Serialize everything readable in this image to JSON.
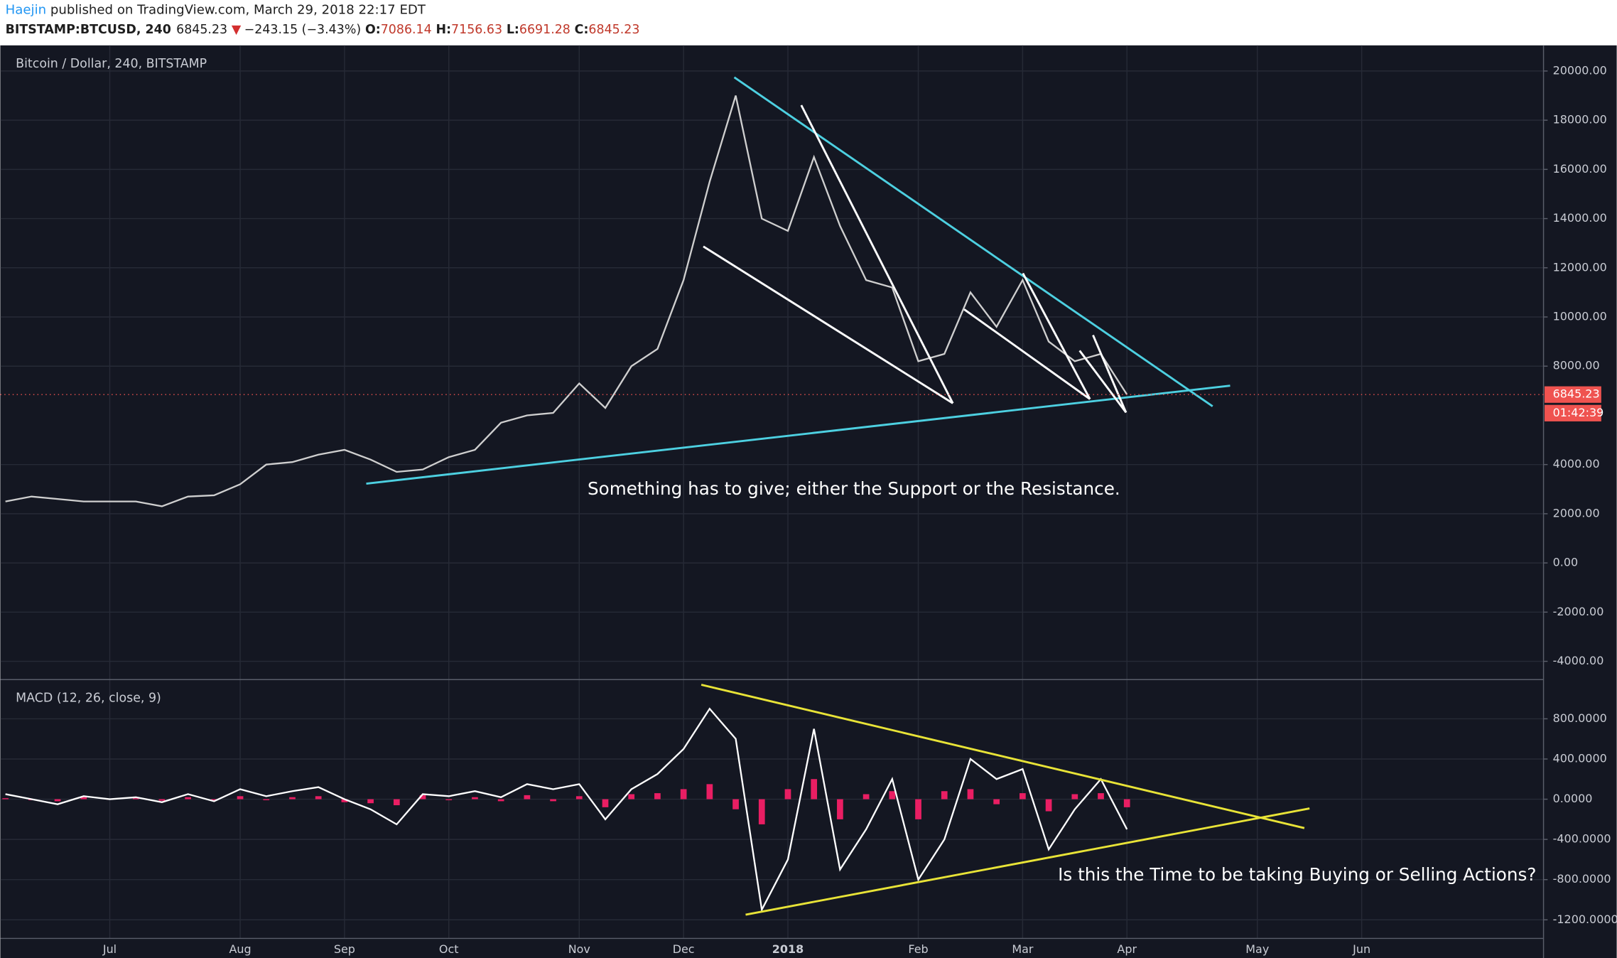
{
  "header": {
    "author": "Haejin",
    "published": "published on TradingView.com, March 29, 2018 22:17 EDT",
    "symbol": "BITSTAMP:BTCUSD, 240",
    "price": "6845.23",
    "arrow": "▼",
    "change": "−243.15 (−3.43%)",
    "open_label": "O:",
    "open": "7086.14",
    "high_label": "H:",
    "high": "7156.63",
    "low_label": "L:",
    "low": "6691.28",
    "close_label": "C:",
    "close": "6845.23"
  },
  "chart_data": [
    {
      "type": "line",
      "title": "Bitcoin / Dollar, 240, BITSTAMP",
      "color": "#cfcfcf",
      "annotation": "Something has to give; either the Support or the Resistance.",
      "values": [
        2500,
        2700,
        2600,
        2500,
        2500,
        2500,
        2300,
        2700,
        2750,
        3200,
        4000,
        4100,
        4400,
        4600,
        4200,
        3700,
        3800,
        4300,
        4600,
        5700,
        6000,
        6100,
        7300,
        6300,
        8000,
        8700,
        11500,
        15500,
        19000,
        14000,
        13500,
        16500,
        13700,
        11500,
        11200,
        8200,
        8500,
        11000,
        9600,
        11500,
        9000,
        8200,
        8500,
        6845.23,
        null,
        null,
        null,
        null,
        null,
        null,
        null,
        null,
        null,
        null,
        null,
        null,
        null,
        null,
        null
      ],
      "ylim": [
        -4700,
        21000
      ],
      "yticks": [
        {
          "value": 20000,
          "label": "20000.00"
        },
        {
          "value": 18000,
          "label": "18000.00"
        },
        {
          "value": 16000,
          "label": "16000.00"
        },
        {
          "value": 14000,
          "label": "14000.00"
        },
        {
          "value": 12000,
          "label": "12000.00"
        },
        {
          "value": 10000,
          "label": "10000.00"
        },
        {
          "value": 8000,
          "label": "8000.00"
        },
        {
          "value": 4000,
          "label": "4000.00"
        },
        {
          "value": 2000,
          "label": "2000.00"
        },
        {
          "value": 0,
          "label": "0.00"
        },
        {
          "value": -2000,
          "label": "-2000.00"
        },
        {
          "value": -4000,
          "label": "-4000.00"
        }
      ],
      "last_price": {
        "value": 6845.23,
        "label": "6845.23"
      },
      "countdown": "01:42:39",
      "grid": true
    },
    {
      "type": "line",
      "title": "MACD (12, 26, close, 9)",
      "grid": true,
      "annotation": "Is this the Time to be taking Buying or Selling Actions?",
      "categories": [
        null,
        null,
        null,
        null,
        "Jul",
        null,
        null,
        null,
        null,
        "Aug",
        null,
        null,
        null,
        "Sep",
        null,
        null,
        null,
        "Oct",
        null,
        null,
        null,
        null,
        "Nov",
        null,
        null,
        null,
        "Dec",
        null,
        null,
        null,
        "2018",
        null,
        null,
        null,
        null,
        "Feb",
        null,
        null,
        null,
        "Mar",
        null,
        null,
        null,
        "Apr",
        null,
        null,
        null,
        null,
        "May",
        null,
        null,
        null,
        "Jun",
        null,
        null,
        null,
        null,
        null,
        null
      ],
      "series": [
        {
          "color": "#e91e63",
          "type": "bar",
          "values": [
            10,
            -10,
            -20,
            20,
            -5,
            10,
            -15,
            20,
            -10,
            30,
            -10,
            20,
            30,
            -30,
            -40,
            -60,
            40,
            -10,
            20,
            -20,
            40,
            -20,
            30,
            -80,
            50,
            60,
            100,
            150,
            -100,
            -250,
            100,
            200,
            -200,
            50,
            80,
            -200,
            80,
            100,
            -50,
            60,
            -120,
            50,
            60,
            -80,
            null,
            null,
            null,
            null,
            null,
            null,
            null,
            null,
            null,
            null,
            null,
            null,
            null,
            null,
            null
          ]
        },
        {
          "color": "#ffffff",
          "type": "line",
          "values": [
            50,
            0,
            -50,
            30,
            0,
            20,
            -30,
            50,
            -20,
            100,
            30,
            80,
            120,
            0,
            -100,
            -250,
            50,
            30,
            80,
            20,
            150,
            100,
            150,
            -200,
            100,
            250,
            500,
            900,
            600,
            -1100,
            -600,
            700,
            -700,
            -300,
            200,
            -800,
            -400,
            400,
            200,
            300,
            -500,
            -100,
            200,
            -300,
            null,
            null,
            null,
            null,
            null,
            null,
            null,
            null,
            null,
            null,
            null,
            null,
            null,
            null,
            null
          ]
        }
      ],
      "ylim": [
        -1385,
        1180
      ],
      "yticks": [
        {
          "value": 800,
          "label": "800.0000"
        },
        {
          "value": 400,
          "label": "400.0000"
        },
        {
          "value": 0,
          "label": "0.0000"
        },
        {
          "value": -400,
          "label": "-400.0000"
        },
        {
          "value": -800,
          "label": "-800.0000"
        },
        {
          "value": -1200,
          "label": "-1200.0000"
        }
      ]
    }
  ]
}
